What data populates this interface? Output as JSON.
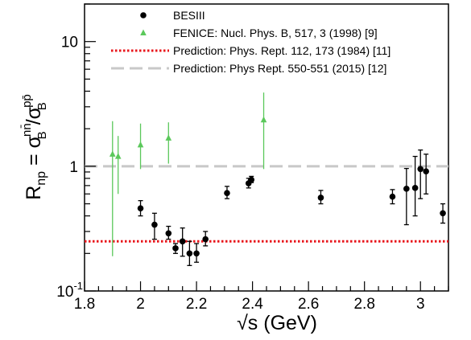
{
  "chart_data": {
    "type": "scatter",
    "xlabel": "√s (GeV)",
    "ylabel": {
      "main": "R",
      "main_sub": "np",
      "eq": " = σ",
      "num_sup": "nn̄",
      "num_sub": "B",
      "slash": "/σ",
      "den_sup": "pp̄",
      "den_sub": "B"
    },
    "xlim": [
      1.8,
      3.1
    ],
    "ylim": [
      0.1,
      20
    ],
    "yscale": "log",
    "grid": false,
    "legend_position": "top-right",
    "x_ticks": [
      {
        "value": 1.8,
        "label": "1.8"
      },
      {
        "value": 2.0,
        "label": "2"
      },
      {
        "value": 2.2,
        "label": "2.2"
      },
      {
        "value": 2.4,
        "label": "2.4"
      },
      {
        "value": 2.6,
        "label": "2.6"
      },
      {
        "value": 2.8,
        "label": "2.8"
      },
      {
        "value": 3.0,
        "label": "3"
      }
    ],
    "y_ticks": [
      {
        "value": 0.1,
        "label_base": "10",
        "label_sup": "-1"
      },
      {
        "value": 1,
        "label_base": "1",
        "label_sup": ""
      },
      {
        "value": 10,
        "label_base": "10",
        "label_sup": ""
      }
    ],
    "series": [
      {
        "name": "BESIII",
        "marker": "circle",
        "color": "#000000",
        "points": [
          {
            "x": 2.0,
            "y": 0.46,
            "lo": 0.4,
            "hi": 0.53
          },
          {
            "x": 2.05,
            "y": 0.34,
            "lo": 0.26,
            "hi": 0.42
          },
          {
            "x": 2.1,
            "y": 0.29,
            "lo": 0.26,
            "hi": 0.33
          },
          {
            "x": 2.125,
            "y": 0.22,
            "lo": 0.2,
            "hi": 0.24
          },
          {
            "x": 2.15,
            "y": 0.25,
            "lo": 0.19,
            "hi": 0.32
          },
          {
            "x": 2.175,
            "y": 0.2,
            "lo": 0.16,
            "hi": 0.25
          },
          {
            "x": 2.2,
            "y": 0.2,
            "lo": 0.17,
            "hi": 0.24
          },
          {
            "x": 2.232,
            "y": 0.26,
            "lo": 0.23,
            "hi": 0.3
          },
          {
            "x": 2.309,
            "y": 0.61,
            "lo": 0.55,
            "hi": 0.69
          },
          {
            "x": 2.386,
            "y": 0.73,
            "lo": 0.67,
            "hi": 0.8
          },
          {
            "x": 2.396,
            "y": 0.78,
            "lo": 0.74,
            "hi": 0.83
          },
          {
            "x": 2.644,
            "y": 0.56,
            "lo": 0.5,
            "hi": 0.64
          },
          {
            "x": 2.9,
            "y": 0.57,
            "lo": 0.5,
            "hi": 0.65
          },
          {
            "x": 2.95,
            "y": 0.66,
            "lo": 0.34,
            "hi": 0.96
          },
          {
            "x": 2.981,
            "y": 0.67,
            "lo": 0.4,
            "hi": 1.2
          },
          {
            "x": 3.0,
            "y": 0.95,
            "lo": 0.55,
            "hi": 1.35
          },
          {
            "x": 3.02,
            "y": 0.91,
            "lo": 0.6,
            "hi": 1.25
          },
          {
            "x": 3.08,
            "y": 0.42,
            "lo": 0.35,
            "hi": 0.5
          }
        ]
      },
      {
        "name": "FENICE: Nucl. Phys. B, 517, 3 (1998) [9]",
        "marker": "triangle",
        "color": "#5bc85b",
        "points": [
          {
            "x": 1.9,
            "y": 1.25,
            "lo": 0.19,
            "hi": 2.3
          },
          {
            "x": 1.92,
            "y": 1.2,
            "lo": 0.6,
            "hi": 1.75
          },
          {
            "x": 2.0,
            "y": 1.48,
            "lo": 0.95,
            "hi": 2.2
          },
          {
            "x": 2.1,
            "y": 1.68,
            "lo": 1.05,
            "hi": 2.25
          },
          {
            "x": 2.44,
            "y": 2.35,
            "lo": 0.95,
            "hi": 3.9
          }
        ]
      }
    ],
    "lines": [
      {
        "name": "Prediction: Phys. Rept. 112, 173 (1984) [11]",
        "y": 0.25,
        "style": "dotted",
        "color": "#e8151b"
      },
      {
        "name": "Prediction: Phys Rept. 550-551 (2015) [12]",
        "y": 1.0,
        "style": "dashed",
        "color": "#c8c8c8"
      }
    ]
  }
}
